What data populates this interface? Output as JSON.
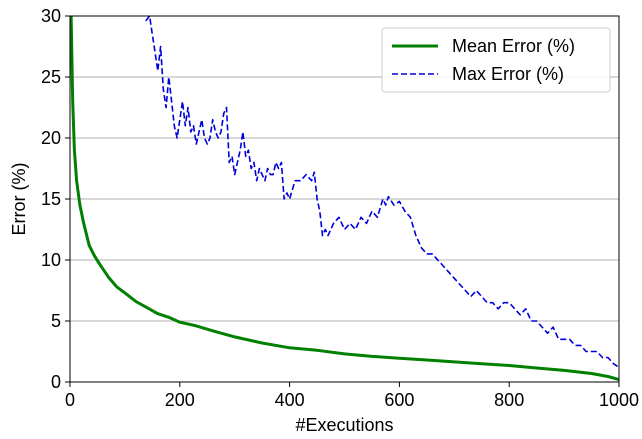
{
  "chart_data": {
    "type": "line",
    "xlabel": "#Executions",
    "ylabel": "Error (%)",
    "xlim": [
      0,
      1000
    ],
    "ylim": [
      0,
      30
    ],
    "xticks": [
      0,
      200,
      400,
      600,
      800,
      1000
    ],
    "yticks": [
      0,
      5,
      10,
      15,
      20,
      25,
      30
    ],
    "grid": "horizontal",
    "legend_position": "top-right",
    "series": [
      {
        "name": "Mean Error (%)",
        "color": "#008000",
        "style": "solid",
        "x": [
          2,
          5,
          8,
          12,
          18,
          25,
          35,
          45,
          55,
          70,
          85,
          100,
          120,
          140,
          160,
          180,
          200,
          230,
          260,
          300,
          350,
          400,
          450,
          500,
          550,
          600,
          650,
          700,
          750,
          800,
          850,
          900,
          950,
          980,
          1000
        ],
        "y": [
          30,
          23,
          19,
          16.5,
          14.5,
          13,
          11.2,
          10.3,
          9.6,
          8.6,
          7.8,
          7.3,
          6.6,
          6.1,
          5.6,
          5.3,
          4.9,
          4.6,
          4.2,
          3.7,
          3.2,
          2.8,
          2.6,
          2.3,
          2.1,
          1.95,
          1.8,
          1.65,
          1.5,
          1.35,
          1.15,
          0.95,
          0.7,
          0.45,
          0.2
        ]
      },
      {
        "name": "Max Error (%)",
        "color": "#0000dd",
        "style": "dashed",
        "x": [
          138,
          145,
          150,
          155,
          160,
          165,
          170,
          175,
          180,
          185,
          190,
          195,
          200,
          205,
          210,
          215,
          220,
          225,
          230,
          235,
          240,
          245,
          250,
          255,
          260,
          265,
          270,
          275,
          280,
          285,
          290,
          295,
          300,
          305,
          310,
          315,
          320,
          325,
          330,
          335,
          340,
          345,
          350,
          355,
          360,
          365,
          370,
          375,
          380,
          385,
          390,
          395,
          400,
          410,
          420,
          430,
          440,
          445,
          450,
          455,
          460,
          465,
          470,
          480,
          490,
          500,
          510,
          520,
          530,
          540,
          550,
          560,
          570,
          575,
          580,
          590,
          600,
          610,
          620,
          630,
          640,
          650,
          660,
          670,
          680,
          690,
          700,
          710,
          720,
          730,
          740,
          750,
          760,
          770,
          780,
          790,
          800,
          810,
          820,
          830,
          840,
          850,
          860,
          870,
          880,
          890,
          900,
          910,
          920,
          930,
          940,
          950,
          960,
          970,
          980,
          990,
          1000
        ],
        "y": [
          29.6,
          30,
          28.5,
          27,
          25.5,
          27.5,
          24,
          22.5,
          25,
          23,
          21,
          20,
          21.5,
          23,
          21,
          22.5,
          20.5,
          21,
          19.5,
          20.5,
          21.5,
          20,
          19.5,
          20,
          21.5,
          20.5,
          20,
          20.5,
          22,
          22.5,
          18,
          18.5,
          17,
          18,
          19,
          20.5,
          18.5,
          19,
          17.5,
          18,
          16.5,
          17.5,
          17,
          16.5,
          17.5,
          17,
          17,
          18,
          17.5,
          18,
          15,
          15.5,
          15,
          16.5,
          16.5,
          17,
          16.5,
          17.2,
          15,
          14,
          12,
          12.5,
          12,
          13,
          13.5,
          12.5,
          13,
          12.5,
          13.5,
          13,
          14,
          13.5,
          15,
          14.5,
          15.2,
          14.5,
          14.8,
          14,
          13.5,
          12,
          11,
          10.5,
          10.5,
          10,
          9.5,
          9,
          8.5,
          8,
          7.5,
          7,
          7.5,
          7,
          6.5,
          6.5,
          6,
          6.5,
          6.5,
          6,
          5.5,
          6,
          5,
          5,
          4.5,
          4,
          4.5,
          3.5,
          3.5,
          3.5,
          3,
          3,
          2.5,
          2.5,
          2.5,
          2,
          2,
          1.5,
          1.2
        ]
      }
    ]
  }
}
